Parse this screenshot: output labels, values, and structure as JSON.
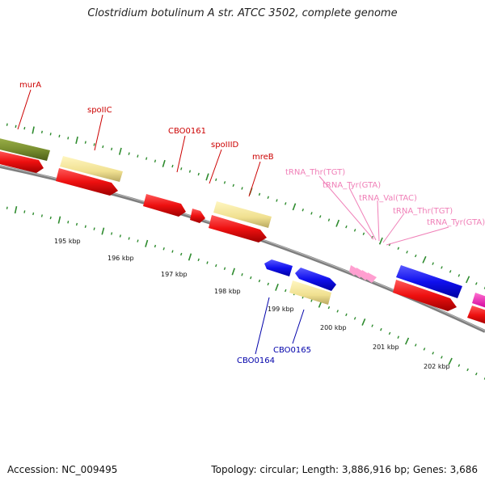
{
  "title": "Clostridium botulinum A str. ATCC 3502, complete genome",
  "footer": {
    "accession": "Accession: NC_009495",
    "summary": "Topology: circular; Length: 3,886,916 bp; Genes: 3,686"
  },
  "colors": {
    "backbone": "#8a8a8a",
    "ticks": "#2e8b2e",
    "cds_forward": "#f5e9a0",
    "cds_reverse": "#e81010",
    "rna": "#ff9fd0",
    "label_red": "#cc0000",
    "label_blue": "#0000aa",
    "label_pink": "#f080b8"
  },
  "scale": {
    "unit": "kbp",
    "labels": [
      "195 kbp",
      "196 kbp",
      "197 kbp",
      "198 kbp",
      "199 kbp",
      "200 kbp",
      "201 kbp",
      "202 kbp"
    ]
  },
  "genes": [
    {
      "label": "murA",
      "color": "#cc0000"
    },
    {
      "label": "spoIIC",
      "color": "#cc0000"
    },
    {
      "label": "CBO0161",
      "color": "#cc0000"
    },
    {
      "label": "spoIIID",
      "color": "#cc0000"
    },
    {
      "label": "mreB",
      "color": "#cc0000"
    },
    {
      "label": "tRNA_Thr(TGT)",
      "color": "#f080b8"
    },
    {
      "label": "tRNA_Tyr(GTA)",
      "color": "#f080b8"
    },
    {
      "label": "tRNA_Val(TAC)",
      "color": "#f080b8"
    },
    {
      "label": "tRNA_Thr(TGT)",
      "color": "#f080b8"
    },
    {
      "label": "tRNA_Tyr(GTA)",
      "color": "#f080b8"
    },
    {
      "label": "CBO0164",
      "color": "#0000aa"
    },
    {
      "label": "CBO0165",
      "color": "#0000aa"
    }
  ]
}
